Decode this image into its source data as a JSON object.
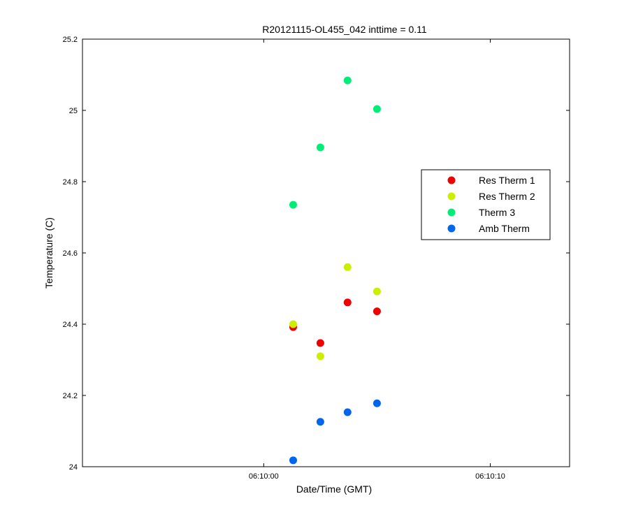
{
  "chart_data": {
    "type": "scatter",
    "title": "R20121115-OL455_042 inttime = 0.11",
    "xlabel": "Date/Time (GMT)",
    "ylabel": "Temperature (C)",
    "ylim": [
      24,
      25.2
    ],
    "yticks": [
      "24",
      "24.2",
      "24.4",
      "24.6",
      "24.8",
      "25",
      "25.2"
    ],
    "xlim": [
      "06:09:52",
      "06:10:13.5"
    ],
    "xticks": [
      {
        "label": "06:10:00",
        "time": "06:10:00"
      },
      {
        "label": "06:10:10",
        "time": "06:10:10"
      }
    ],
    "x": [
      "06:10:01.3",
      "06:10:02.5",
      "06:10:03.7",
      "06:10:05.0"
    ],
    "legend_position": "right",
    "series": [
      {
        "name": "Res Therm 1",
        "color": "#ee0000",
        "values": [
          24.392,
          24.347,
          24.461,
          24.436
        ]
      },
      {
        "name": "Res Therm 2",
        "color": "#ccee00",
        "values": [
          24.4,
          24.31,
          24.56,
          24.492
        ]
      },
      {
        "name": "Therm 3",
        "color": "#00ee77",
        "values": [
          24.735,
          24.896,
          25.084,
          25.004
        ]
      },
      {
        "name": "Amb Therm",
        "color": "#0066ee",
        "values": [
          24.018,
          24.126,
          24.153,
          24.178
        ]
      }
    ]
  }
}
